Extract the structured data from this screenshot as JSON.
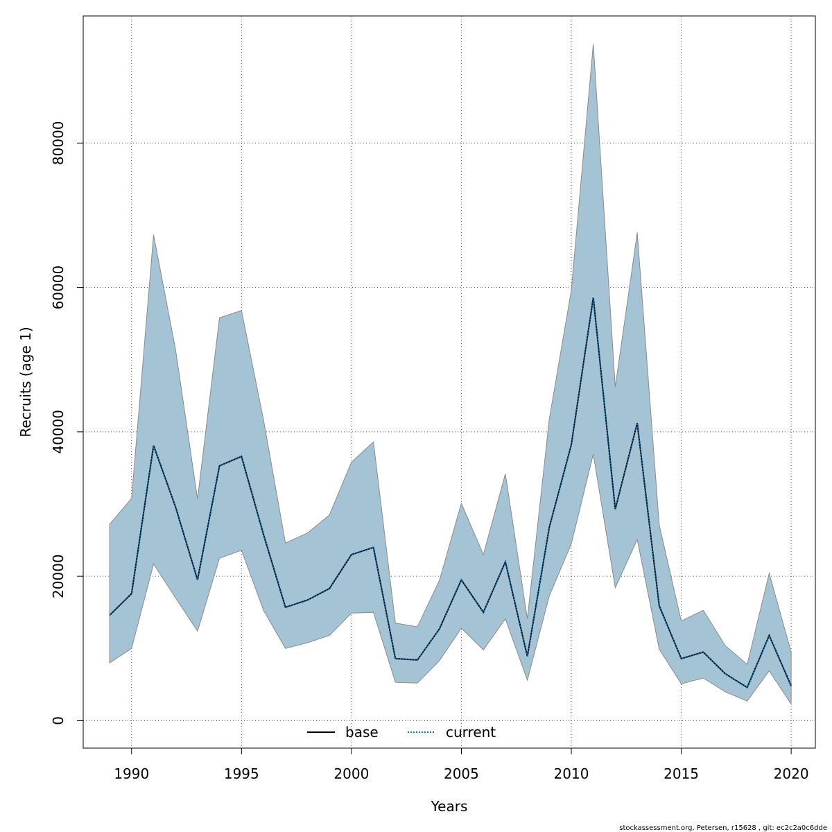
{
  "chart_data": {
    "type": "area",
    "xlabel": "Years",
    "ylabel": "Recruits (age 1)",
    "xlim": [
      1987.8,
      2021.1
    ],
    "ylim": [
      -3800,
      97600
    ],
    "xticks": [
      1990,
      1995,
      2000,
      2005,
      2010,
      2015,
      2020
    ],
    "xtick_labels": [
      "1990",
      "1995",
      "2000",
      "2005",
      "2010",
      "2015",
      "2020"
    ],
    "yticks": [
      0,
      20000,
      40000,
      60000,
      80000
    ],
    "ytick_labels": [
      "0",
      "20000",
      "40000",
      "60000",
      "80000"
    ],
    "grid": true,
    "legend_position": "bottom-center",
    "x": [
      1989,
      1990,
      1991,
      1992,
      1993,
      1994,
      1995,
      1996,
      1997,
      1998,
      1999,
      2000,
      2001,
      2002,
      2003,
      2004,
      2005,
      2006,
      2007,
      2008,
      2009,
      2010,
      2011,
      2012,
      2013,
      2014,
      2015,
      2016,
      2017,
      2018,
      2019,
      2020
    ],
    "series": [
      {
        "name": "base",
        "line_style": "solid",
        "color": "#000000",
        "values": [
          14600,
          17600,
          38100,
          29600,
          19500,
          35300,
          36600,
          25800,
          15700,
          16700,
          18300,
          23000,
          24000,
          8600,
          8400,
          12700,
          19500,
          15000,
          22000,
          8900,
          26800,
          38200,
          58600,
          29300,
          41200,
          15900,
          8600,
          9500,
          6500,
          4600,
          11800,
          4800
        ]
      },
      {
        "name": "current",
        "line_style": "dotted",
        "color": "#0072b2",
        "values": [
          14600,
          17600,
          38100,
          29600,
          19500,
          35300,
          36600,
          25800,
          15700,
          16700,
          18300,
          23000,
          24000,
          8600,
          8400,
          12700,
          19500,
          15000,
          22000,
          8900,
          26800,
          38200,
          58600,
          29300,
          41200,
          15900,
          8600,
          9500,
          6500,
          4600,
          11800,
          4800
        ]
      }
    ],
    "interval": {
      "lower": [
        8000,
        10000,
        21700,
        17000,
        12400,
        22500,
        23600,
        15300,
        10000,
        10800,
        11800,
        14900,
        15000,
        5300,
        5200,
        8300,
        12800,
        9800,
        14100,
        5600,
        17300,
        24500,
        36900,
        18400,
        25100,
        9900,
        5100,
        5900,
        4000,
        2700,
        6900,
        2300
      ],
      "upper": [
        27200,
        30800,
        67300,
        51400,
        30700,
        55800,
        56800,
        41700,
        24600,
        26000,
        28500,
        35800,
        38600,
        13500,
        13000,
        19400,
        30100,
        23000,
        34200,
        14100,
        41800,
        59600,
        93700,
        46200,
        67600,
        27100,
        13800,
        15300,
        10400,
        7800,
        20400,
        9500
      ],
      "fill_color": "#a4c3d4",
      "edge_color": "#8a8a8a"
    }
  },
  "legend": {
    "items": [
      {
        "label": "base",
        "style": "solid",
        "color": "#000000"
      },
      {
        "label": "current",
        "style": "dotted",
        "color": "#0072b2"
      }
    ]
  },
  "footer": {
    "text": "stockassessment.org, Petersen, r15628 , git: ec2c2a0c6dde"
  }
}
